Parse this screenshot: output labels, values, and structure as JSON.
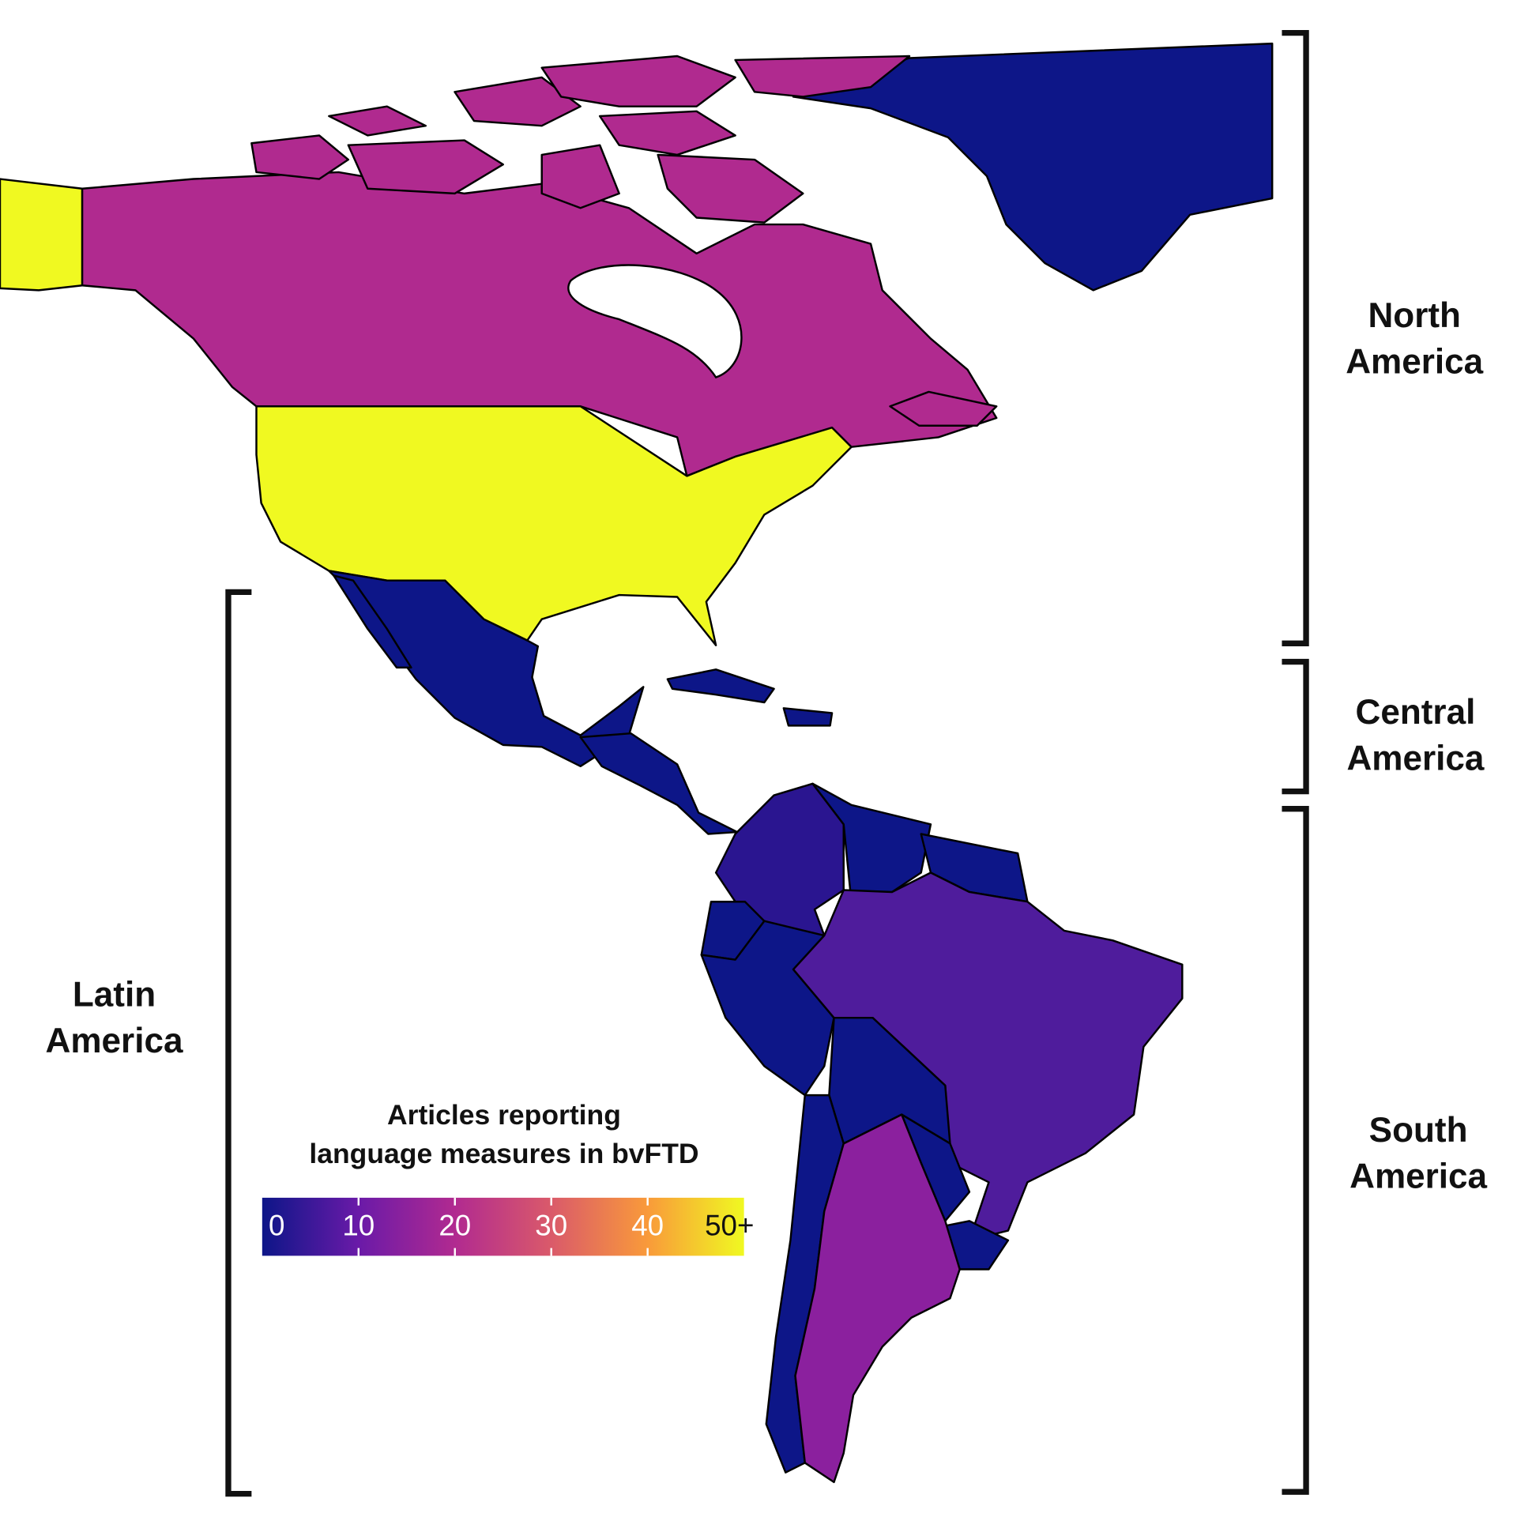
{
  "region_labels": {
    "north_america": [
      "North",
      "America"
    ],
    "central_america": [
      "Central",
      "America"
    ],
    "south_america": [
      "South",
      "America"
    ],
    "latin_america": [
      "Latin",
      "America"
    ]
  },
  "legend": {
    "title_line1": "Articles reporting",
    "title_line2": "language measures in bvFTD",
    "ticks": [
      "0",
      "10",
      "20",
      "30",
      "40",
      "50+"
    ],
    "colormap": [
      "#0d0887",
      "#6a00a8",
      "#b12a90",
      "#e16462",
      "#fca636",
      "#f0f921"
    ]
  },
  "map_data": {
    "United States": {
      "value": "50+",
      "color": "#f0f921"
    },
    "Alaska (US)": {
      "value": "50+",
      "color": "#f0f921"
    },
    "Canada": {
      "value": 20,
      "color": "#b02a8f"
    },
    "Greenland": {
      "value": 0,
      "color": "#0d1688"
    },
    "Mexico": {
      "value": 0,
      "color": "#0d1688"
    },
    "Central America": {
      "value": 0,
      "color": "#0d1688"
    },
    "Caribbean": {
      "value": 0,
      "color": "#0d1688"
    },
    "Colombia": {
      "value": 3,
      "color": "#2a1590"
    },
    "Brazil": {
      "value": 8,
      "color": "#4f1c9c"
    },
    "Argentina": {
      "value": 15,
      "color": "#8b209e"
    },
    "Other South America": {
      "value": 0,
      "color": "#0d1688"
    }
  }
}
